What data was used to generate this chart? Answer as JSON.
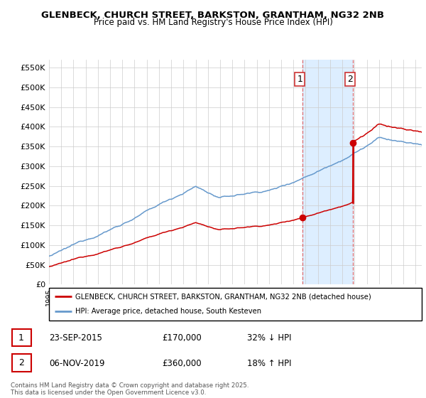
{
  "title": "GLENBECK, CHURCH STREET, BARKSTON, GRANTHAM, NG32 2NB",
  "subtitle": "Price paid vs. HM Land Registry's House Price Index (HPI)",
  "ylabel_ticks": [
    "£0",
    "£50K",
    "£100K",
    "£150K",
    "£200K",
    "£250K",
    "£300K",
    "£350K",
    "£400K",
    "£450K",
    "£500K",
    "£550K"
  ],
  "ytick_values": [
    0,
    50000,
    100000,
    150000,
    200000,
    250000,
    300000,
    350000,
    400000,
    450000,
    500000,
    550000
  ],
  "ylim": [
    0,
    570000
  ],
  "xlim_start": 1995.0,
  "xlim_end": 2025.5,
  "sale1_x": 2015.73,
  "sale1_y": 170000,
  "sale2_x": 2019.85,
  "sale2_y": 360000,
  "sale2_hpi_projected": 210000,
  "shade_x1": 2015.73,
  "shade_x2": 2019.85,
  "red_color": "#cc0000",
  "blue_color": "#6699cc",
  "shade_color": "#ddeeff",
  "legend_label_red": "GLENBECK, CHURCH STREET, BARKSTON, GRANTHAM, NG32 2NB (detached house)",
  "legend_label_blue": "HPI: Average price, detached house, South Kesteven",
  "annotation1_label": "1",
  "annotation2_label": "2",
  "note1_num": "1",
  "note1_date": "23-SEP-2015",
  "note1_price": "£170,000",
  "note1_hpi": "32% ↓ HPI",
  "note2_num": "2",
  "note2_date": "06-NOV-2019",
  "note2_price": "£360,000",
  "note2_hpi": "18% ↑ HPI",
  "footer": "Contains HM Land Registry data © Crown copyright and database right 2025.\nThis data is licensed under the Open Government Licence v3.0."
}
